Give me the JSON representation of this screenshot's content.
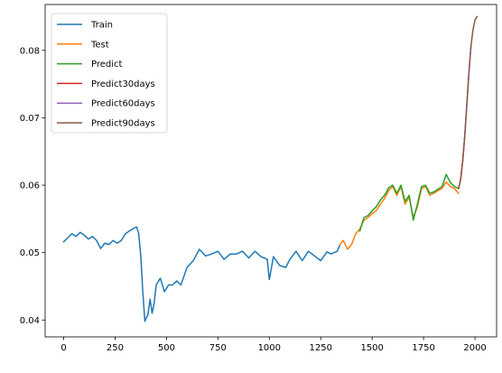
{
  "chart_data": {
    "type": "line",
    "title": "",
    "xlabel": "",
    "ylabel": "",
    "xlim": [
      -90,
      2105
    ],
    "ylim": [
      0.0375,
      0.0868
    ],
    "x_ticks": [
      0,
      250,
      500,
      750,
      1000,
      1250,
      1500,
      1750,
      2000
    ],
    "y_ticks": [
      0.04,
      0.05,
      0.06,
      0.07,
      0.08
    ],
    "x_tick_labels": [
      "0",
      "250",
      "500",
      "750",
      "1000",
      "1250",
      "1500",
      "1750",
      "2000"
    ],
    "y_tick_labels": [
      "0.04",
      "0.05",
      "0.06",
      "0.07",
      "0.08"
    ],
    "grid": false,
    "legend_position": "upper-left",
    "series": [
      {
        "name": "Train",
        "color": "#1f77b4",
        "x": [
          0,
          20,
          40,
          60,
          80,
          100,
          120,
          140,
          160,
          180,
          200,
          220,
          240,
          260,
          280,
          300,
          320,
          340,
          355,
          365,
          375,
          385,
          395,
          400,
          410,
          420,
          430,
          440,
          450,
          470,
          490,
          510,
          530,
          550,
          570,
          600,
          630,
          660,
          690,
          720,
          750,
          780,
          810,
          840,
          870,
          900,
          930,
          960,
          990,
          1000,
          1020,
          1050,
          1080,
          1100,
          1130,
          1160,
          1190,
          1220,
          1250,
          1280,
          1300,
          1330,
          1344
        ],
        "y": [
          0.0516,
          0.0522,
          0.0528,
          0.0524,
          0.053,
          0.0526,
          0.052,
          0.0524,
          0.0518,
          0.0506,
          0.0514,
          0.0512,
          0.0518,
          0.0514,
          0.0518,
          0.0528,
          0.0532,
          0.0536,
          0.0538,
          0.0528,
          0.0495,
          0.0441,
          0.0398,
          0.0402,
          0.0408,
          0.0431,
          0.041,
          0.0425,
          0.0452,
          0.0462,
          0.0442,
          0.0452,
          0.0452,
          0.0458,
          0.0452,
          0.0478,
          0.0488,
          0.0505,
          0.0495,
          0.0498,
          0.0502,
          0.049,
          0.0498,
          0.0498,
          0.0502,
          0.0492,
          0.0502,
          0.0494,
          0.049,
          0.046,
          0.0494,
          0.0481,
          0.0478,
          0.049,
          0.0502,
          0.0488,
          0.0502,
          0.0495,
          0.0488,
          0.0501,
          0.0498,
          0.0502,
          0.0512
        ]
      },
      {
        "name": "Test",
        "color": "#ff7f0e",
        "x": [
          1344,
          1360,
          1380,
          1400,
          1420,
          1440,
          1460,
          1480,
          1500,
          1520,
          1540,
          1560,
          1580,
          1600,
          1620,
          1640,
          1660,
          1680,
          1700,
          1720,
          1740,
          1760,
          1780,
          1800,
          1820,
          1840,
          1860,
          1880,
          1900,
          1920
        ],
        "y": [
          0.0512,
          0.0518,
          0.0505,
          0.0512,
          0.0528,
          0.0535,
          0.0548,
          0.0552,
          0.0558,
          0.0562,
          0.0572,
          0.058,
          0.0592,
          0.0598,
          0.0585,
          0.0598,
          0.0572,
          0.0582,
          0.0552,
          0.0568,
          0.0595,
          0.0598,
          0.0585,
          0.0588,
          0.0592,
          0.0595,
          0.0605,
          0.0598,
          0.0595,
          0.0588
        ]
      },
      {
        "name": "Predict",
        "color": "#2ca02c",
        "x": [
          1440,
          1460,
          1480,
          1500,
          1520,
          1540,
          1560,
          1580,
          1600,
          1620,
          1640,
          1660,
          1680,
          1700,
          1720,
          1740,
          1760,
          1780,
          1800,
          1820,
          1840,
          1860,
          1880,
          1900,
          1920
        ],
        "y": [
          0.0532,
          0.0552,
          0.0555,
          0.0562,
          0.0568,
          0.0578,
          0.0585,
          0.0596,
          0.06,
          0.0588,
          0.06,
          0.0576,
          0.0585,
          0.0548,
          0.0572,
          0.0598,
          0.06,
          0.0588,
          0.059,
          0.0594,
          0.0598,
          0.0616,
          0.0604,
          0.0598,
          0.0595
        ]
      },
      {
        "name": "Predict30days",
        "color": "#d62728",
        "x": [
          1920,
          1930,
          1940,
          1950
        ],
        "y": [
          0.0595,
          0.0608,
          0.0635,
          0.0672
        ]
      },
      {
        "name": "Predict60days",
        "color": "#9467bd",
        "x": [
          1950,
          1960,
          1970,
          1980
        ],
        "y": [
          0.0672,
          0.0718,
          0.0765,
          0.0805
        ]
      },
      {
        "name": "Predict90days",
        "color": "#8c564b",
        "x": [
          1920,
          1930,
          1940,
          1950,
          1960,
          1970,
          1980,
          1990,
          2000,
          2010
        ],
        "y": [
          0.0595,
          0.0608,
          0.0635,
          0.0672,
          0.0718,
          0.0765,
          0.0805,
          0.083,
          0.0845,
          0.085
        ]
      }
    ]
  }
}
